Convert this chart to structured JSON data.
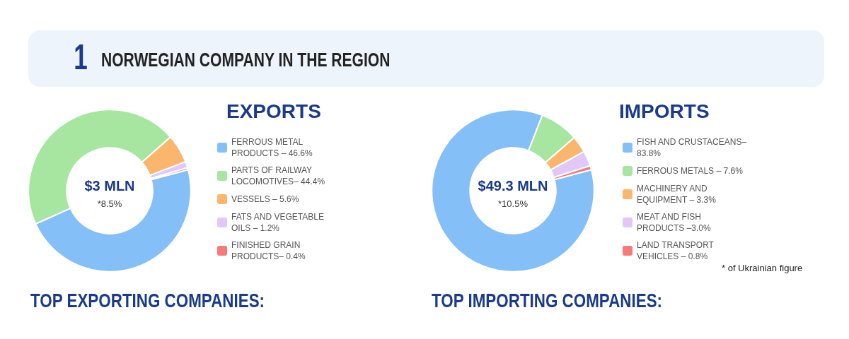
{
  "chart_data": [
    {
      "type": "donut",
      "title": "EXPORTS",
      "categories": [
        "FERROUS METAL PRODUCTS – 46.6%",
        "PARTS OF RAILWAY LOCOMOTIVES– 44.4%",
        "VESSELS – 5.6%",
        "FATS AND VEGETABLE OILS – 1.2%",
        "FINISHED GRAIN PRODUCTS– 0.4%"
      ],
      "values": [
        46.6,
        44.4,
        5.6,
        1.2,
        0.4
      ],
      "colors": [
        "#84bff8",
        "#a6e6a0",
        "#fbb66e",
        "#e1c8f8",
        "#f77a7a"
      ],
      "legend": "right",
      "annotations": [
        "$3 MLN",
        "*8.5%",
        "1",
        "NORWEGIAN COMPANY IN THE REGION",
        "TOP EXPORTING COMPANIES:"
      ]
    },
    {
      "type": "donut",
      "title": "IMPORTS",
      "categories": [
        "FISH AND CRUSTACEANS– 83.8%",
        "FERROUS METALS – 7.6%",
        "MACHINERY AND EQUIPMENT – 3.3%",
        "MEAT AND FISH PRODUCTS –3.0%",
        "LAND TRANSPORT VEHICLES – 0.8%"
      ],
      "values": [
        83.8,
        7.6,
        3.3,
        3.0,
        0.8
      ],
      "colors": [
        "#84bff8",
        "#a6e6a0",
        "#fbb66e",
        "#e1c8f8",
        "#f77a7a"
      ],
      "legend": "right",
      "annotations": [
        "$49.3 MLN",
        "*10.5%",
        "* of Ukrainian figure",
        "TOP IMPORTING COMPANIES:"
      ]
    }
  ]
}
